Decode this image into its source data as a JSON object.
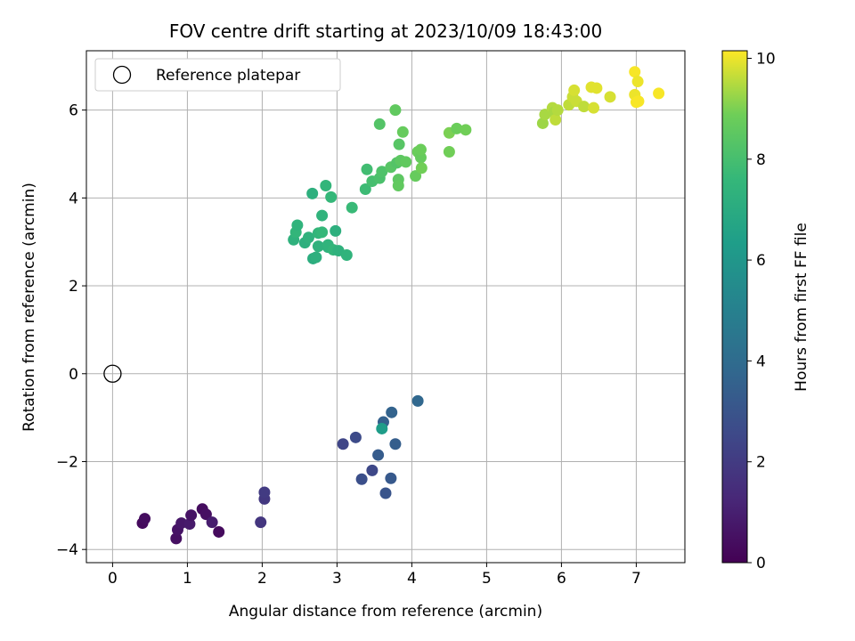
{
  "chart_data": {
    "type": "scatter",
    "title": "FOV centre drift starting at 2023/10/09 18:43:00",
    "xlabel": "Angular distance from reference (arcmin)",
    "ylabel": "Rotation from reference (arcmin)",
    "xlim": [
      -0.35,
      7.65
    ],
    "ylim": [
      -4.3,
      7.35
    ],
    "xticks": [
      0,
      1,
      2,
      3,
      4,
      5,
      6,
      7
    ],
    "yticks": [
      -4,
      -2,
      0,
      2,
      4,
      6
    ],
    "grid": true,
    "legend": {
      "position": "top-left",
      "entries": [
        "Reference platepar"
      ]
    },
    "reference_point": {
      "x": 0,
      "y": 0
    },
    "colorbar": {
      "label": "Hours from first FF file",
      "min": 0,
      "max": 10.15,
      "ticks": [
        0,
        2,
        4,
        6,
        8,
        10
      ],
      "colormap": "viridis"
    },
    "points": [
      {
        "x": 0.4,
        "y": -3.4,
        "h": 0.3
      },
      {
        "x": 0.43,
        "y": -3.3,
        "h": 0.4
      },
      {
        "x": 0.85,
        "y": -3.75,
        "h": 0.5
      },
      {
        "x": 0.87,
        "y": -3.55,
        "h": 0.6
      },
      {
        "x": 0.92,
        "y": -3.4,
        "h": 0.7
      },
      {
        "x": 1.03,
        "y": -3.42,
        "h": 0.8
      },
      {
        "x": 1.05,
        "y": -3.22,
        "h": 0.6
      },
      {
        "x": 1.2,
        "y": -3.08,
        "h": 0.4
      },
      {
        "x": 1.25,
        "y": -3.2,
        "h": 0.5
      },
      {
        "x": 1.33,
        "y": -3.38,
        "h": 0.9
      },
      {
        "x": 1.42,
        "y": -3.6,
        "h": 0.3
      },
      {
        "x": 1.98,
        "y": -3.38,
        "h": 1.8
      },
      {
        "x": 2.03,
        "y": -2.85,
        "h": 1.9
      },
      {
        "x": 2.03,
        "y": -2.7,
        "h": 2.0
      },
      {
        "x": 3.08,
        "y": -1.6,
        "h": 2.4
      },
      {
        "x": 3.25,
        "y": -1.45,
        "h": 2.6
      },
      {
        "x": 3.33,
        "y": -2.4,
        "h": 2.8
      },
      {
        "x": 3.47,
        "y": -2.2,
        "h": 2.5
      },
      {
        "x": 3.55,
        "y": -1.85,
        "h": 3.3
      },
      {
        "x": 3.62,
        "y": -1.1,
        "h": 3.5
      },
      {
        "x": 3.65,
        "y": -2.72,
        "h": 3.0
      },
      {
        "x": 3.72,
        "y": -2.38,
        "h": 3.2
      },
      {
        "x": 3.73,
        "y": -0.88,
        "h": 3.6
      },
      {
        "x": 3.78,
        "y": -1.6,
        "h": 3.4
      },
      {
        "x": 4.08,
        "y": -0.62,
        "h": 3.8
      },
      {
        "x": 3.6,
        "y": -1.25,
        "h": 6.3
      },
      {
        "x": 2.42,
        "y": 3.05,
        "h": 7.3
      },
      {
        "x": 2.45,
        "y": 3.22,
        "h": 7.5
      },
      {
        "x": 2.47,
        "y": 3.38,
        "h": 7.4
      },
      {
        "x": 2.57,
        "y": 2.98,
        "h": 7.2
      },
      {
        "x": 2.62,
        "y": 3.1,
        "h": 7.3
      },
      {
        "x": 2.67,
        "y": 4.1,
        "h": 7.2
      },
      {
        "x": 2.68,
        "y": 2.62,
        "h": 7.1
      },
      {
        "x": 2.72,
        "y": 2.65,
        "h": 7.2
      },
      {
        "x": 2.75,
        "y": 2.9,
        "h": 7.3
      },
      {
        "x": 2.75,
        "y": 3.2,
        "h": 7.5
      },
      {
        "x": 2.8,
        "y": 3.22,
        "h": 7.6
      },
      {
        "x": 2.8,
        "y": 3.6,
        "h": 7.4
      },
      {
        "x": 2.85,
        "y": 4.28,
        "h": 7.5
      },
      {
        "x": 2.88,
        "y": 2.88,
        "h": 7.3
      },
      {
        "x": 2.88,
        "y": 2.93,
        "h": 7.4
      },
      {
        "x": 2.92,
        "y": 4.02,
        "h": 7.6
      },
      {
        "x": 2.95,
        "y": 2.82,
        "h": 7.5
      },
      {
        "x": 2.98,
        "y": 3.25,
        "h": 7.2
      },
      {
        "x": 3.02,
        "y": 2.8,
        "h": 7.3
      },
      {
        "x": 3.13,
        "y": 2.7,
        "h": 7.4
      },
      {
        "x": 3.2,
        "y": 3.78,
        "h": 7.7
      },
      {
        "x": 3.38,
        "y": 4.2,
        "h": 7.8
      },
      {
        "x": 3.4,
        "y": 4.65,
        "h": 7.9
      },
      {
        "x": 3.47,
        "y": 4.38,
        "h": 8.0
      },
      {
        "x": 3.57,
        "y": 4.45,
        "h": 8.1
      },
      {
        "x": 3.57,
        "y": 5.68,
        "h": 8.3
      },
      {
        "x": 3.6,
        "y": 4.6,
        "h": 8.2
      },
      {
        "x": 3.72,
        "y": 4.7,
        "h": 8.4
      },
      {
        "x": 3.78,
        "y": 6.0,
        "h": 8.6
      },
      {
        "x": 3.8,
        "y": 4.8,
        "h": 8.3
      },
      {
        "x": 3.82,
        "y": 4.42,
        "h": 8.5
      },
      {
        "x": 3.82,
        "y": 4.28,
        "h": 8.6
      },
      {
        "x": 3.83,
        "y": 5.22,
        "h": 8.4
      },
      {
        "x": 3.85,
        "y": 4.85,
        "h": 8.5
      },
      {
        "x": 3.88,
        "y": 5.5,
        "h": 8.7
      },
      {
        "x": 3.92,
        "y": 4.82,
        "h": 8.6
      },
      {
        "x": 4.05,
        "y": 4.5,
        "h": 8.7
      },
      {
        "x": 4.08,
        "y": 5.05,
        "h": 8.8
      },
      {
        "x": 4.12,
        "y": 4.92,
        "h": 8.7
      },
      {
        "x": 4.12,
        "y": 5.1,
        "h": 8.8
      },
      {
        "x": 4.13,
        "y": 4.68,
        "h": 8.9
      },
      {
        "x": 4.5,
        "y": 5.05,
        "h": 8.9
      },
      {
        "x": 4.5,
        "y": 5.48,
        "h": 9.0
      },
      {
        "x": 4.6,
        "y": 5.58,
        "h": 8.8
      },
      {
        "x": 4.72,
        "y": 5.55,
        "h": 8.9
      },
      {
        "x": 5.75,
        "y": 5.7,
        "h": 9.3
      },
      {
        "x": 5.78,
        "y": 5.9,
        "h": 9.4
      },
      {
        "x": 5.88,
        "y": 6.05,
        "h": 9.5
      },
      {
        "x": 5.9,
        "y": 5.95,
        "h": 9.4
      },
      {
        "x": 5.92,
        "y": 5.78,
        "h": 9.6
      },
      {
        "x": 5.95,
        "y": 6.0,
        "h": 9.5
      },
      {
        "x": 6.1,
        "y": 6.12,
        "h": 9.6
      },
      {
        "x": 6.15,
        "y": 6.3,
        "h": 9.7
      },
      {
        "x": 6.17,
        "y": 6.45,
        "h": 9.8
      },
      {
        "x": 6.2,
        "y": 6.2,
        "h": 9.7
      },
      {
        "x": 6.3,
        "y": 6.08,
        "h": 9.6
      },
      {
        "x": 6.4,
        "y": 6.52,
        "h": 9.9
      },
      {
        "x": 6.43,
        "y": 6.05,
        "h": 9.8
      },
      {
        "x": 6.47,
        "y": 6.5,
        "h": 9.9
      },
      {
        "x": 6.65,
        "y": 6.3,
        "h": 9.8
      },
      {
        "x": 6.98,
        "y": 6.87,
        "h": 10.1
      },
      {
        "x": 6.98,
        "y": 6.35,
        "h": 10.0
      },
      {
        "x": 7.0,
        "y": 6.18,
        "h": 10.1
      },
      {
        "x": 7.02,
        "y": 6.65,
        "h": 10.0
      },
      {
        "x": 7.03,
        "y": 6.2,
        "h": 10.1
      },
      {
        "x": 7.3,
        "y": 6.38,
        "h": 10.1
      }
    ]
  }
}
